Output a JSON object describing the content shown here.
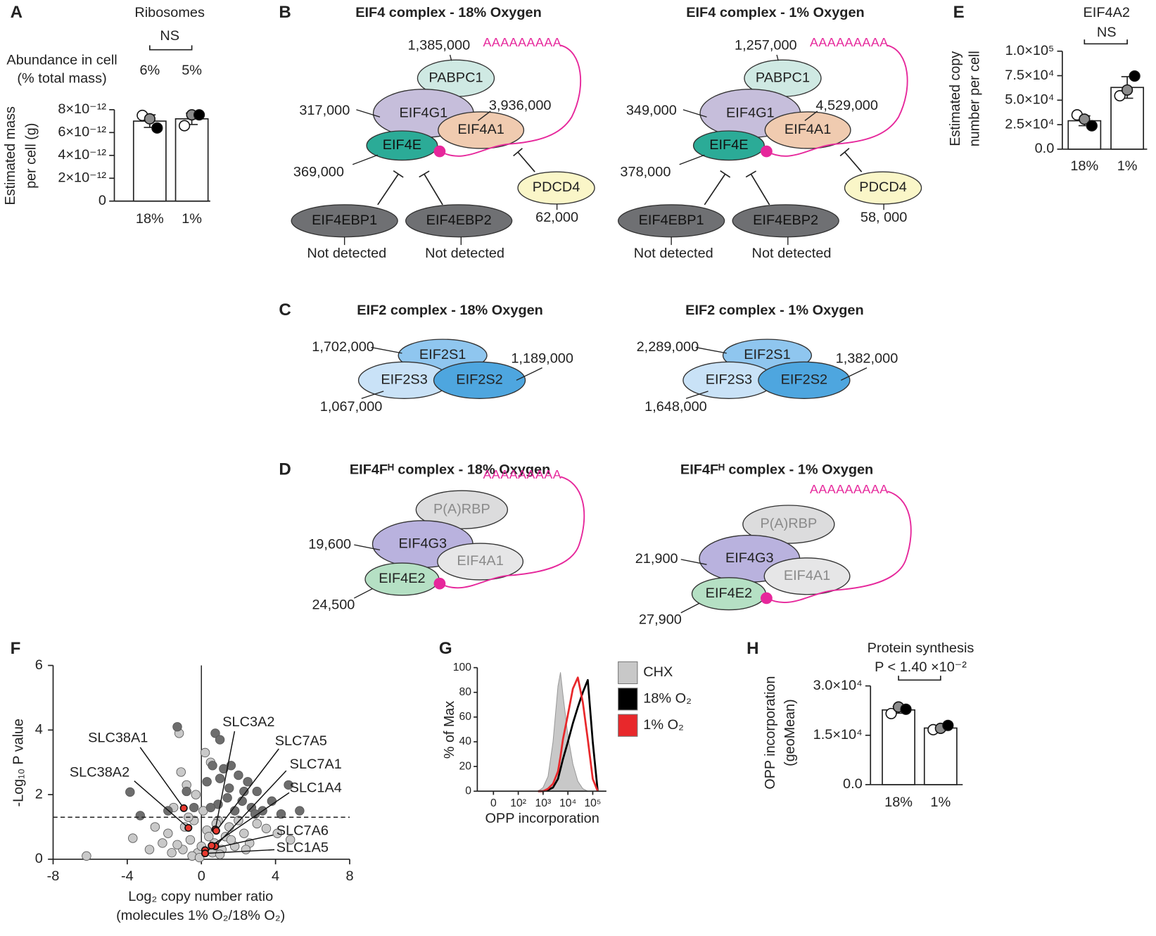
{
  "chart_data": [
    {
      "panel": "A",
      "type": "bar",
      "title": "Ribosomes",
      "ylabel": [
        "Estimated mass",
        "per cell (g)"
      ],
      "categories": [
        "18%",
        "1%"
      ],
      "values": [
        7e-12,
        7.2e-12
      ],
      "errors": [
        5.5e-13,
        5e-13
      ],
      "points": [
        [
          7.5e-12,
          7.2e-12,
          6.4e-12
        ],
        [
          6.6e-12,
          7.55e-12,
          7.55e-12
        ]
      ],
      "point_fills": [
        "#ffffff",
        "#8c8c8c",
        "#000000"
      ],
      "color": "#ffffff",
      "ylim": [
        0,
        8e-12
      ],
      "yticks": [
        0,
        {
          "value": 2e-12,
          "label": "2×10⁻¹²"
        },
        {
          "value": 4e-12,
          "label": "4×10⁻¹²"
        },
        {
          "value": 6e-12,
          "label": "6×10⁻¹²"
        },
        {
          "value": 8e-12,
          "label": "8×10⁻¹²"
        }
      ],
      "comparison": "NS",
      "abundance_title": [
        "Abundance in cell",
        "(% total mass)"
      ],
      "abundance_labels": [
        "6%",
        "5%"
      ]
    },
    {
      "panel": "E",
      "type": "bar",
      "title": "EIF4A2",
      "ylabel": [
        "Estimated copy",
        "number per cell"
      ],
      "categories": [
        "18%",
        "1%"
      ],
      "values": [
        29000,
        63000
      ],
      "errors": [
        5000,
        11000
      ],
      "points": [
        [
          35000,
          30600,
          23900
        ],
        [
          54500,
          60400,
          74600
        ]
      ],
      "point_fills": [
        "#ffffff",
        "#8c8c8c",
        "#000000"
      ],
      "color": "#ffffff",
      "ylim": [
        0,
        100000
      ],
      "yticks": [
        {
          "value": 0,
          "label": "0.0"
        },
        {
          "value": 25000,
          "label": "2.5×10⁴"
        },
        {
          "value": 50000,
          "label": "5.0×10⁴"
        },
        {
          "value": 75000,
          "label": "7.5×10⁴"
        },
        {
          "value": 100000,
          "label": "1.0×10⁵"
        }
      ],
      "comparison": "NS"
    },
    {
      "panel": "F",
      "type": "scatter",
      "ylabel": "-Log₁₀ P value",
      "xlabel": [
        "Log₂ copy number ratio",
        "(molecules 1% O₂/18% O₂)"
      ],
      "xlim": [
        -8,
        8
      ],
      "ylim": [
        0,
        6
      ],
      "xticks": [
        -8,
        -4,
        0,
        4,
        8
      ],
      "yticks": [
        0,
        2,
        4,
        6
      ],
      "hline": 1.3,
      "vline": 0,
      "series": [
        {
          "color": "#c9c9c9",
          "x": [
            -6.2,
            -3.7,
            -2.5,
            -2.1,
            -1.8,
            -1.5,
            -1.2,
            -1.0,
            -0.8,
            -0.6,
            -0.4,
            -0.2,
            0.0,
            0.2,
            0.3,
            0.5,
            0.7,
            0.9,
            1.1,
            1.3,
            1.5,
            1.8,
            2.0,
            2.3,
            2.6,
            3.0,
            3.5,
            4.1,
            4.8,
            -1.6,
            -0.9,
            -0.5,
            0.1,
            0.4,
            -0.3,
            0.6,
            1.0,
            -2.8,
            -1.3,
            -0.7,
            1.6,
            2.4,
            -1.1,
            0.8,
            -0.1
          ],
          "y": [
            0.1,
            0.65,
            1.0,
            0.5,
            0.8,
            1.6,
            3.9,
            0.3,
            2.3,
            0.6,
            1.2,
            0.2,
            0.4,
            3.3,
            0.9,
            3.0,
            0.5,
            1.2,
            0.3,
            0.7,
            1.0,
            0.4,
            1.2,
            0.8,
            0.5,
            1.1,
            0.95,
            0.8,
            0.6,
            0.2,
            1.0,
            0.1,
            1.5,
            0.7,
            2.0,
            0.2,
            0.15,
            0.3,
            0.45,
            1.3,
            0.6,
            0.3,
            2.7,
            1.1,
            0.05
          ]
        },
        {
          "color": "#6d6d6d",
          "x": [
            -3.85,
            -1.3,
            0.75,
            1.0,
            0.6,
            1.2,
            2.0,
            2.5,
            1.5,
            3.0,
            4.7,
            2.2,
            1.8,
            3.3,
            4.3,
            5.3,
            2.7,
            0.9,
            1.4,
            0.5,
            3.8,
            -0.8,
            -0.4,
            -1.8,
            -3.3,
            1.0,
            1.6,
            2.3,
            0.3,
            2.9
          ],
          "y": [
            2.08,
            4.1,
            3.9,
            3.7,
            2.9,
            2.8,
            2.6,
            2.4,
            2.2,
            2.1,
            2.3,
            1.8,
            1.5,
            1.5,
            1.4,
            1.5,
            1.6,
            1.7,
            1.9,
            1.6,
            1.8,
            2.1,
            1.6,
            1.5,
            1.35,
            2.5,
            2.9,
            2.1,
            2.4,
            1.4
          ]
        },
        {
          "color": "#e8392f",
          "x": [
            -0.95,
            -0.7,
            0.75,
            0.8,
            0.75,
            0.55,
            0.2,
            0.2
          ],
          "y": [
            1.58,
            0.97,
            0.92,
            0.88,
            0.4,
            0.42,
            0.28,
            0.18
          ],
          "labels": [
            "SLC38A1",
            "SLC38A2",
            "SLC3A2",
            "SLC7A5",
            "SLC7A1",
            "SLC1A4",
            "SLC7A6",
            "SLC1A5"
          ]
        }
      ]
    },
    {
      "panel": "G",
      "type": "line",
      "ylabel": "% of Max",
      "xlabel": "OPP incorporation",
      "xlim": [
        0.35,
        5.55
      ],
      "ylim": [
        0,
        100
      ],
      "xticks": [
        {
          "value": 1,
          "label": "0"
        },
        {
          "value": 2,
          "label": "10²"
        },
        {
          "value": 3,
          "label": "10³"
        },
        {
          "value": 4,
          "label": "10⁴"
        },
        {
          "value": 5,
          "label": "10⁵"
        }
      ],
      "yticks": [
        0,
        20,
        40,
        60,
        80,
        100
      ],
      "x": [
        2.8,
        3.0,
        3.2,
        3.4,
        3.6,
        3.7,
        3.8,
        4.0,
        4.2,
        4.4,
        4.6,
        4.8,
        5.0,
        5.2
      ],
      "series": [
        {
          "name": "CHX",
          "color": "#c8c8c8",
          "fill": true,
          "values": [
            0,
            3,
            12,
            40,
            85,
            96,
            78,
            45,
            22,
            8,
            2,
            0,
            0,
            0
          ]
        },
        {
          "name": "18% O₂",
          "color": "#000000",
          "fill": false,
          "values": [
            0,
            0,
            1,
            3,
            10,
            18,
            26,
            40,
            55,
            68,
            80,
            90,
            40,
            0
          ]
        },
        {
          "name": "1% O₂",
          "color": "#e8282b",
          "fill": false,
          "values": [
            0,
            0,
            2,
            6,
            16,
            28,
            42,
            62,
            83,
            92,
            72,
            42,
            10,
            0
          ]
        }
      ]
    },
    {
      "panel": "H",
      "type": "bar",
      "title": "Protein synthesis",
      "ylabel": [
        "OPP incorporation",
        "(geoMean)"
      ],
      "categories": [
        "18%",
        "1%"
      ],
      "values": [
        22700,
        17200
      ],
      "errors": [
        1000,
        700
      ],
      "points": [
        [
          21600,
          23600,
          22900
        ],
        [
          16700,
          17100,
          18000
        ]
      ],
      "point_fills": [
        "#ffffff",
        "#8c8c8c",
        "#000000"
      ],
      "color": "#ffffff",
      "ylim": [
        0,
        30000
      ],
      "yticks": [
        {
          "value": 0,
          "label": "0.0"
        },
        {
          "value": 15000,
          "label": "1.5×10⁴"
        },
        {
          "value": 30000,
          "label": "3.0×10⁴"
        }
      ],
      "comparison": "P < 1.40 ×10⁻²"
    }
  ],
  "diagrams": [
    {
      "panel": "B",
      "kind": "eif4",
      "polyA": "AAAAAAAAA",
      "complexes": [
        {
          "title": "EIF4 complex - 18% Oxygen",
          "nodes": [
            {
              "label": "PABPC1",
              "count": "1,385,000"
            },
            {
              "label": "EIF4G1",
              "count": "317,000"
            },
            {
              "label": "EIF4A1",
              "count": "3,936,000"
            },
            {
              "label": "EIF4E",
              "count": "369,000"
            },
            {
              "label": "PDCD4",
              "count": "62,000"
            },
            {
              "label": "EIF4EBP1",
              "count": "Not detected"
            },
            {
              "label": "EIF4EBP2",
              "count": "Not detected"
            }
          ]
        },
        {
          "title": "EIF4 complex - 1% Oxygen",
          "nodes": [
            {
              "label": "PABPC1",
              "count": "1,257,000"
            },
            {
              "label": "EIF4G1",
              "count": "349,000"
            },
            {
              "label": "EIF4A1",
              "count": "4,529,000"
            },
            {
              "label": "EIF4E",
              "count": "378,000"
            },
            {
              "label": "PDCD4",
              "count": "58, 000"
            },
            {
              "label": "EIF4EBP1",
              "count": "Not detected"
            },
            {
              "label": "EIF4EBP2",
              "count": "Not detected"
            }
          ]
        }
      ]
    },
    {
      "panel": "C",
      "kind": "eif2",
      "complexes": [
        {
          "title": "EIF2 complex - 18% Oxygen",
          "nodes": [
            {
              "label": "EIF2S1",
              "count": "1,702,000"
            },
            {
              "label": "EIF2S3",
              "count": "1,067,000"
            },
            {
              "label": "EIF2S2",
              "count": "1,189,000"
            }
          ]
        },
        {
          "title": "EIF2 complex - 1% Oxygen",
          "nodes": [
            {
              "label": "EIF2S1",
              "count": "2,289,000"
            },
            {
              "label": "EIF2S3",
              "count": "1,648,000"
            },
            {
              "label": "EIF2S2",
              "count": "1,382,000"
            }
          ]
        }
      ]
    },
    {
      "panel": "D",
      "kind": "eif4fh",
      "polyA": "AAAAAAAAA",
      "complexes": [
        {
          "title": "EIF4Fᴴ complex - 18% Oxygen",
          "nodes": [
            {
              "label": "P(A)RBP"
            },
            {
              "label": "EIF4G3",
              "count": "19,600"
            },
            {
              "label": "EIF4A1"
            },
            {
              "label": "EIF4E2",
              "count": "24,500"
            }
          ]
        },
        {
          "title": "EIF4Fᴴ complex - 1% Oxygen",
          "nodes": [
            {
              "label": "P(A)RBP"
            },
            {
              "label": "EIF4G3",
              "count": "21,900"
            },
            {
              "label": "EIF4A1"
            },
            {
              "label": "EIF4E2",
              "count": "27,900"
            }
          ]
        }
      ]
    }
  ]
}
